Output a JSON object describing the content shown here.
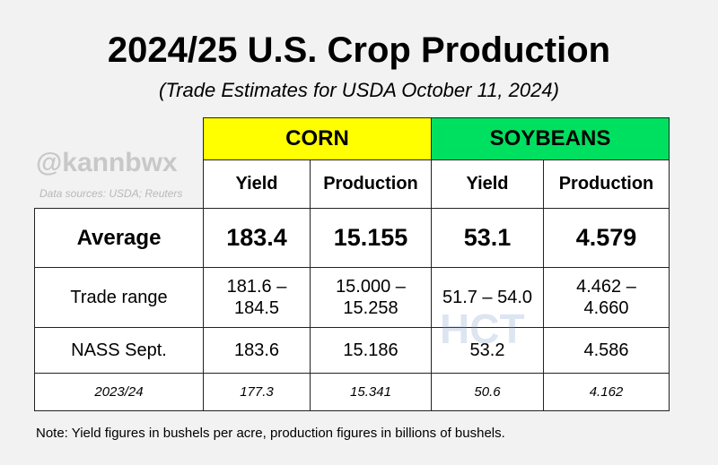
{
  "header": {
    "title": "2024/25 U.S. Crop Production",
    "subtitle": "(Trade Estimates for USDA October 11, 2024)"
  },
  "watermark": {
    "handle": "@kannbwx",
    "sources": "Data sources: USDA; Reuters",
    "logo": "HCT"
  },
  "table": {
    "groups": [
      "CORN",
      "SOYBEANS"
    ],
    "columns": [
      "Yield",
      "Production",
      "Yield",
      "Production"
    ],
    "rows": [
      {
        "label": "Average",
        "cells": [
          [
            "183.4"
          ],
          [
            "15.155"
          ],
          [
            "53.1"
          ],
          [
            "4.579"
          ]
        ]
      },
      {
        "label": "Trade range",
        "cells": [
          [
            "181.6 –",
            "184.5"
          ],
          [
            "15.000 –",
            "15.258"
          ],
          [
            "51.7 – 54.0"
          ],
          [
            "4.462 –",
            "4.660"
          ]
        ]
      },
      {
        "label": "NASS Sept.",
        "cells": [
          [
            "183.6"
          ],
          [
            "15.186"
          ],
          [
            "53.2"
          ],
          [
            "4.586"
          ]
        ]
      },
      {
        "label": "2023/24",
        "cells": [
          [
            "177.3"
          ],
          [
            "15.341"
          ],
          [
            "50.6"
          ],
          [
            "4.162"
          ]
        ]
      }
    ]
  },
  "note": "Note: Yield figures in bushels per acre, production figures in billions of bushels."
}
